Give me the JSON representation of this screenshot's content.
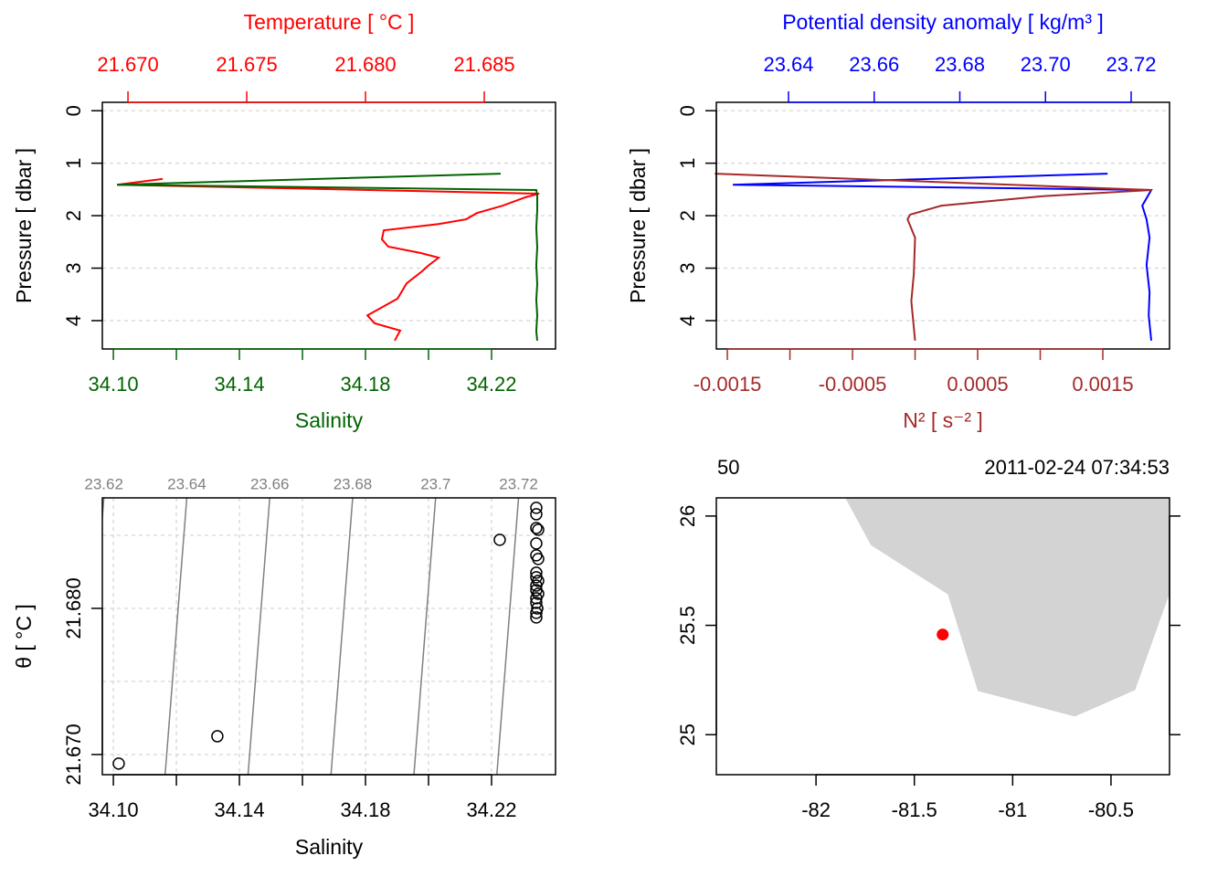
{
  "chart_data": [
    {
      "type": "profile",
      "ylabel": "Pressure [ dbar ]",
      "ylim": [
        4.54,
        -0.16
      ],
      "yticks": [
        0,
        1,
        2,
        3,
        4
      ],
      "grid": true,
      "xlabel": "Salinity",
      "xlim": [
        34.0965,
        34.2403
      ],
      "xticks": [
        {
          "value": 34.1,
          "label": "34.10"
        },
        34.14,
        34.18,
        34.22
      ],
      "xticks_minor": [
        34.12,
        34.16,
        34.2
      ],
      "xcolor": "#006400",
      "x2label": "Temperature [ °C ]",
      "x2lim": [
        21.66892,
        21.688
      ],
      "x2ticks": [
        {
          "value": 21.67,
          "label": "21.670"
        },
        {
          "value": 21.675,
          "label": "21.675"
        },
        {
          "value": 21.68,
          "label": "21.680"
        },
        {
          "value": 21.685,
          "label": "21.685"
        }
      ],
      "x2color": "#ff0000",
      "series": [
        {
          "axis": "x2",
          "color": "#ff0000",
          "pressure": [
            1.3,
            1.41,
            1.58,
            1.65,
            1.81,
            1.95,
            2.07,
            2.16,
            2.28,
            2.45,
            2.59,
            2.71,
            2.8,
            2.96,
            3.06,
            3.29,
            3.58,
            3.9,
            4.05,
            4.19,
            4.38
          ],
          "values": [
            21.67146,
            21.66954,
            21.68731,
            21.68673,
            21.68577,
            21.68469,
            21.68423,
            21.68308,
            21.68077,
            21.68069,
            21.68096,
            21.68231,
            21.68308,
            21.68262,
            21.68238,
            21.68173,
            21.68135,
            21.68008,
            21.68038,
            21.68146,
            21.68123
          ]
        },
        {
          "axis": "x",
          "color": "#006400",
          "pressure": [
            1.2,
            1.41,
            1.51,
            1.62,
            1.9,
            2.24,
            2.6,
            2.94,
            3.3,
            3.6,
            3.9,
            4.2,
            4.38
          ],
          "values": [
            34.2229,
            34.1012,
            34.2342,
            34.2345,
            34.2345,
            34.2342,
            34.2345,
            34.2342,
            34.2345,
            34.2342,
            34.2345,
            34.2342,
            34.2345
          ]
        }
      ]
    },
    {
      "type": "profile",
      "ylabel": "Pressure [ dbar ]",
      "ylim": [
        4.54,
        -0.16
      ],
      "yticks": [
        0,
        1,
        2,
        3,
        4
      ],
      "grid": true,
      "xlabel": "N² [ s⁻² ]",
      "xlim": [
        -0.001588,
        0.002033
      ],
      "xticks": [
        -0.0015,
        -0.0005,
        0.0005,
        0.0015
      ],
      "xticks_minor": [
        -0.001,
        0,
        0.001
      ],
      "xcolor": "#a52a2a",
      "x2label": "Potential density anomaly [ kg/m³ ]",
      "x2lim": [
        23.62315,
        23.72896
      ],
      "x2ticks": [
        23.64,
        23.66,
        23.68,
        {
          "value": 23.7,
          "label": "23.70"
        },
        23.72
      ],
      "x2color": "#0000ff",
      "series": [
        {
          "axis": "x2",
          "color": "#0000ff",
          "pressure": [
            1.2,
            1.41,
            1.51,
            1.81,
            2.07,
            2.42,
            2.94,
            3.46,
            3.9,
            4.38
          ],
          "values": [
            23.7145,
            23.627,
            23.7247,
            23.7226,
            23.7236,
            23.7243,
            23.7236,
            23.7243,
            23.7241,
            23.7247
          ]
        },
        {
          "axis": "x",
          "color": "#a52a2a",
          "pressure": [
            1.2,
            1.51,
            1.63,
            1.81,
            1.98,
            2.07,
            2.42,
            3.11,
            3.63,
            4.38
          ],
          "values": [
            -0.0016,
            0.00189,
            0.00101,
            0.00021,
            -4e-05,
            -6e-05,
            0,
            -1e-05,
            -3e-05,
            0
          ]
        }
      ]
    },
    {
      "type": "ts",
      "xlabel": "Salinity",
      "xlim": [
        34.0965,
        34.2403
      ],
      "xticks": [
        {
          "value": 34.1,
          "label": "34.10"
        },
        34.14,
        34.18,
        34.22
      ],
      "xticks_minor": [
        34.12,
        34.16,
        34.2
      ],
      "ylabel": "θ [ °C ]",
      "ylim": [
        21.66862,
        21.68756
      ],
      "yticks": [
        {
          "value": 21.67,
          "label": "21.670"
        },
        {
          "value": 21.68,
          "label": "21.680"
        }
      ],
      "yticks_minor": [
        21.675,
        21.685
      ],
      "grid": true,
      "isopycnals": {
        "levels": [
          23.62,
          23.64,
          23.66,
          23.68,
          23.7,
          23.72
        ],
        "color": "#808080"
      },
      "salinity": [
        34.1017,
        34.133,
        34.2226,
        34.2342,
        34.2342,
        34.2342,
        34.2348,
        34.2342,
        34.2342,
        34.2348,
        34.2342,
        34.2342,
        34.2348,
        34.2342,
        34.2342,
        34.2348,
        34.2342,
        34.2342,
        34.2345,
        34.2342,
        34.2342
      ],
      "temperature": [
        21.66938,
        21.67125,
        21.68469,
        21.68688,
        21.68644,
        21.6855,
        21.68538,
        21.68444,
        21.68363,
        21.68338,
        21.68244,
        21.68213,
        21.68188,
        21.68156,
        21.68125,
        21.681,
        21.68069,
        21.68038,
        21.68,
        21.67969,
        21.67938
      ]
    },
    {
      "type": "map",
      "station": "50",
      "time": "2011-02-24 07:34:53",
      "xlim": [
        -82.507,
        -80.2023
      ],
      "xticks": [
        -82,
        -81.5,
        -81,
        -80.5
      ],
      "ylim": [
        24.817,
        26.083
      ],
      "yticks": [
        25,
        25.5,
        26
      ],
      "coastline": {
        "color": "#d3d3d3",
        "lon": [
          -81.851,
          -81.721,
          -81.33,
          -81.177,
          -80.684,
          -80.377,
          -80.2023,
          -80.2023
        ],
        "lat": [
          26.083,
          25.867,
          25.642,
          25.2,
          25.083,
          25.204,
          25.646,
          26.083
        ]
      },
      "station_point": {
        "color": "#ff0000",
        "lon": -81.356,
        "lat": 25.458
      }
    }
  ]
}
